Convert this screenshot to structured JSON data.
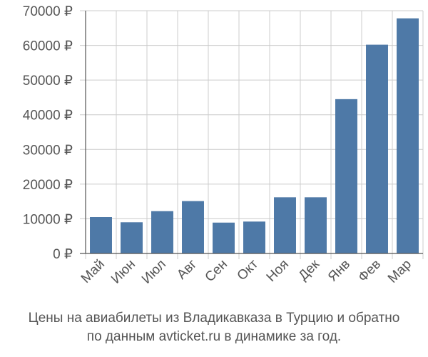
{
  "colors": {
    "bar": "#4e79a7",
    "grid": "#cccccc",
    "axis": "#555555",
    "text": "#555555"
  },
  "caption": {
    "line1": "Цены на авиабилеты из Владикавказа в Турцию и обратно",
    "line2": "по данным avticket.ru в динамике за год."
  },
  "chart_data": {
    "type": "bar",
    "categories": [
      "Май",
      "Июн",
      "Июл",
      "Авг",
      "Сен",
      "Окт",
      "Ноя",
      "Дек",
      "Янв",
      "Фев",
      "Мар"
    ],
    "values": [
      10500,
      9000,
      12200,
      15100,
      8900,
      9200,
      16200,
      16200,
      44500,
      60200,
      67800
    ],
    "yticks": [
      0,
      10000,
      20000,
      30000,
      40000,
      50000,
      60000,
      70000
    ],
    "ytick_labels": [
      "0 ₽",
      "10000 ₽",
      "20000 ₽",
      "30000 ₽",
      "40000 ₽",
      "50000 ₽",
      "60000 ₽",
      "70000 ₽"
    ],
    "ylim": [
      0,
      70000
    ],
    "grid": true,
    "title": "",
    "xlabel": "",
    "ylabel": ""
  }
}
